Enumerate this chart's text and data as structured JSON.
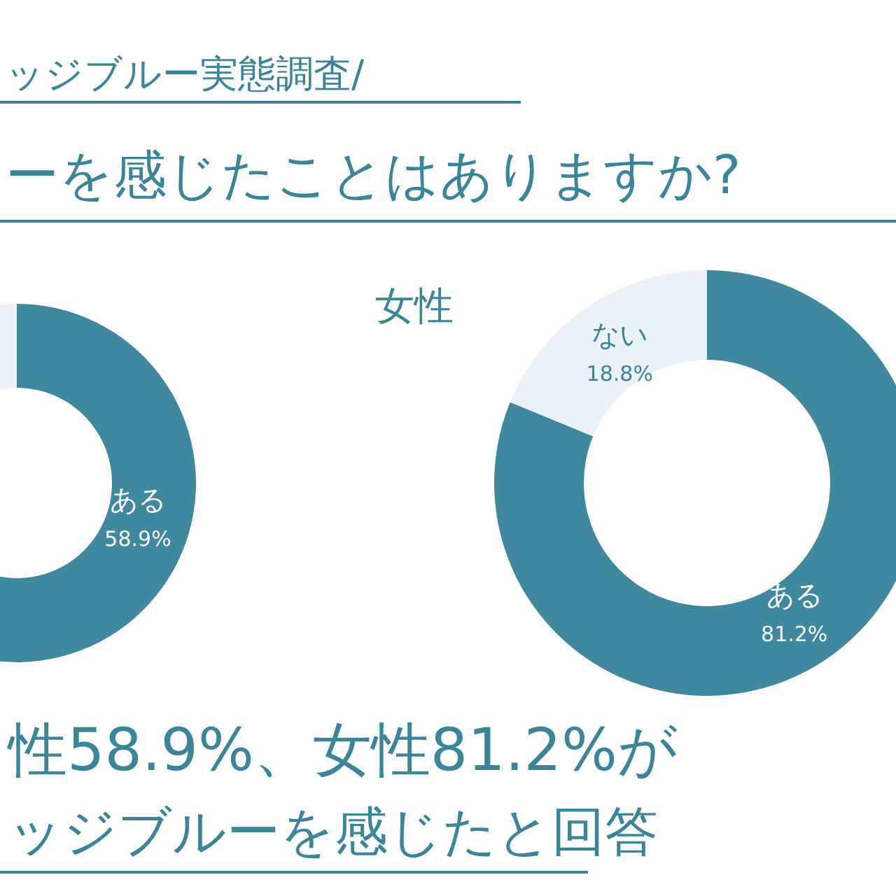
{
  "chart_data": [
    {
      "type": "donut",
      "title": "ッジブルー実態調査/",
      "subtitle": "ーを感じたことはありますか?",
      "categories": [
        "ある",
        null
      ],
      "values": [
        58.9,
        41.1
      ],
      "colors": [
        "#3e88a0",
        "#eaf2f8"
      ],
      "value_labels": [
        "58.9%",
        null
      ],
      "annotations": [
        "性58.9%、女性81.2%が",
        "ッジブルーを感じたと回答"
      ]
    },
    {
      "type": "donut",
      "title": "女性",
      "categories": [
        "ある",
        "ない"
      ],
      "values": [
        81.2,
        18.8
      ],
      "colors": [
        "#3e88a0",
        "#eaf2f8"
      ],
      "value_labels": [
        "81.2%",
        "18.8%"
      ]
    }
  ]
}
